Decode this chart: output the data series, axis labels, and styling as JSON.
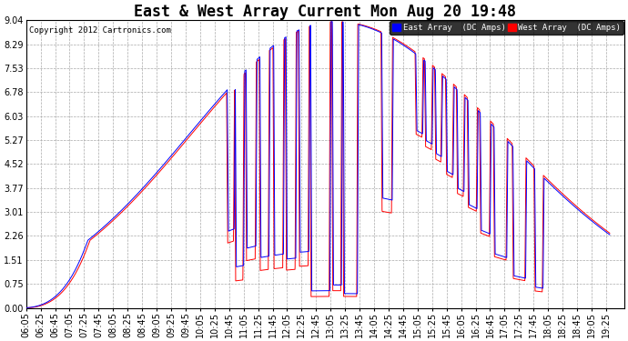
{
  "title": "East & West Array Current Mon Aug 20 19:48",
  "copyright": "Copyright 2012 Cartronics.com",
  "legend_east": "East Array  (DC Amps)",
  "legend_west": "West Array  (DC Amps)",
  "east_color": "#0000ff",
  "west_color": "#ff0000",
  "bg_color": "#ffffff",
  "grid_color": "#aaaaaa",
  "grid_style": "--",
  "yticks": [
    0.0,
    0.75,
    1.51,
    2.26,
    3.01,
    3.77,
    4.52,
    5.27,
    6.03,
    6.78,
    7.53,
    8.29,
    9.04
  ],
  "ylim": [
    0.0,
    9.04
  ],
  "xlim_start": 365,
  "xlim_end": 1190,
  "title_fontsize": 12,
  "tick_fontsize": 7,
  "linewidth": 0.7
}
